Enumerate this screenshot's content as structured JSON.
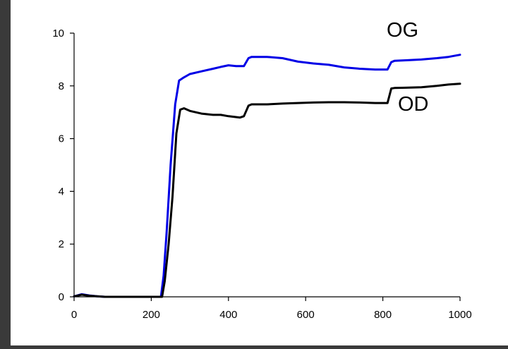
{
  "colors": {
    "background": "#3a3a3a",
    "panel": "#ffffff",
    "axis": "#000000",
    "og": "#0000e6",
    "od": "#000000"
  },
  "chart_data": {
    "type": "line",
    "title": "",
    "xlabel": "",
    "ylabel": "",
    "xlim": [
      0,
      1000
    ],
    "ylim": [
      0,
      10
    ],
    "xticks": [
      "0",
      "200",
      "400",
      "600",
      "800",
      "1000"
    ],
    "yticks": [
      "0",
      "2",
      "4",
      "6",
      "8",
      "10"
    ],
    "grid": false,
    "legend": "none (series labelled directly)",
    "series": [
      {
        "name": "OG",
        "color": "#0000e6",
        "x": [
          0,
          20,
          40,
          60,
          80,
          225,
          232,
          240,
          250,
          262,
          272,
          282,
          300,
          330,
          360,
          380,
          400,
          420,
          440,
          452,
          460,
          500,
          540,
          580,
          620,
          660,
          700,
          740,
          780,
          800,
          812,
          822,
          830,
          860,
          900,
          940,
          970,
          1000
        ],
        "y": [
          0.02,
          0.1,
          0.05,
          0.02,
          0,
          0,
          0.8,
          2.5,
          5.0,
          7.3,
          8.2,
          8.3,
          8.45,
          8.55,
          8.65,
          8.72,
          8.78,
          8.75,
          8.75,
          9.05,
          9.1,
          9.1,
          9.05,
          8.92,
          8.85,
          8.8,
          8.7,
          8.65,
          8.62,
          8.62,
          8.62,
          8.9,
          8.95,
          8.97,
          9.0,
          9.05,
          9.1,
          9.18
        ]
      },
      {
        "name": "OD",
        "color": "#000000",
        "x": [
          0,
          20,
          40,
          60,
          80,
          228,
          235,
          245,
          255,
          265,
          275,
          285,
          300,
          330,
          360,
          380,
          400,
          430,
          440,
          452,
          460,
          500,
          540,
          580,
          620,
          660,
          700,
          740,
          780,
          800,
          812,
          822,
          830,
          860,
          900,
          940,
          970,
          1000
        ],
        "y": [
          0.02,
          0.08,
          0.04,
          0.02,
          0,
          0,
          0.6,
          2.0,
          3.8,
          6.2,
          7.1,
          7.15,
          7.05,
          6.95,
          6.9,
          6.9,
          6.85,
          6.8,
          6.85,
          7.25,
          7.3,
          7.3,
          7.33,
          7.35,
          7.37,
          7.38,
          7.38,
          7.37,
          7.35,
          7.35,
          7.35,
          7.9,
          7.92,
          7.93,
          7.95,
          8.0,
          8.05,
          8.08
        ]
      }
    ],
    "annotations": [
      {
        "text": "OG",
        "series": "OG"
      },
      {
        "text": "OD",
        "series": "OD"
      }
    ]
  }
}
